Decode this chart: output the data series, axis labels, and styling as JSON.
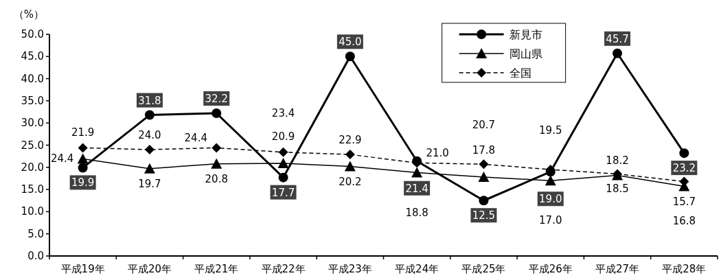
{
  "chart_data": {
    "type": "line",
    "ylabel": "（%）",
    "categories": [
      "平成19年",
      "平成20年",
      "平成21年",
      "平成22年",
      "平成23年",
      "平成24年",
      "平成25年",
      "平成26年",
      "平成27年",
      "平成28年"
    ],
    "series": [
      {
        "name": "新見市",
        "color": "#000000",
        "marker": "circle",
        "line_style": "solid",
        "values": [
          19.9,
          31.8,
          32.2,
          17.7,
          45.0,
          21.4,
          12.5,
          19.0,
          45.7,
          23.2
        ],
        "value_labels": [
          "19.9",
          "31.8",
          "32.2",
          "17.7",
          "45.0",
          "21.4",
          "12.5",
          "19.0",
          "45.7",
          "23.2"
        ]
      },
      {
        "name": "岡山県",
        "color": "#000000",
        "marker": "triangle",
        "line_style": "solid",
        "values": [
          21.9,
          19.7,
          20.8,
          20.9,
          20.2,
          18.8,
          17.8,
          17.0,
          18.2,
          15.7
        ],
        "value_labels": [
          "21.9",
          "19.7",
          "20.8",
          "20.9",
          "20.2",
          "18.8",
          "17.8",
          "17.0",
          "18.2",
          "15.7"
        ]
      },
      {
        "name": "全国",
        "color": "#000000",
        "marker": "diamond",
        "line_style": "dashed",
        "values": [
          24.4,
          24.0,
          24.4,
          23.4,
          22.9,
          21.0,
          20.7,
          19.5,
          18.5,
          16.8
        ],
        "value_labels": [
          "24.4",
          "24.0",
          "24.4",
          "23.4",
          "22.9",
          "21.0",
          "20.7",
          "19.5",
          "18.5",
          "16.8"
        ]
      }
    ],
    "ylim": [
      0,
      50
    ],
    "yticks": [
      {
        "value": 0,
        "label": "0.0"
      },
      {
        "value": 5,
        "label": "5.0"
      },
      {
        "value": 10,
        "label": "10.0"
      },
      {
        "value": 15,
        "label": "15.0"
      },
      {
        "value": 20,
        "label": "20.0"
      },
      {
        "value": 25,
        "label": "25.0"
      },
      {
        "value": 30,
        "label": "30.0"
      },
      {
        "value": 35,
        "label": "35.0"
      },
      {
        "value": 40,
        "label": "40.0"
      },
      {
        "value": 45,
        "label": "45.0"
      },
      {
        "value": 50,
        "label": "50.0"
      }
    ],
    "grid": false,
    "legend": "top"
  }
}
